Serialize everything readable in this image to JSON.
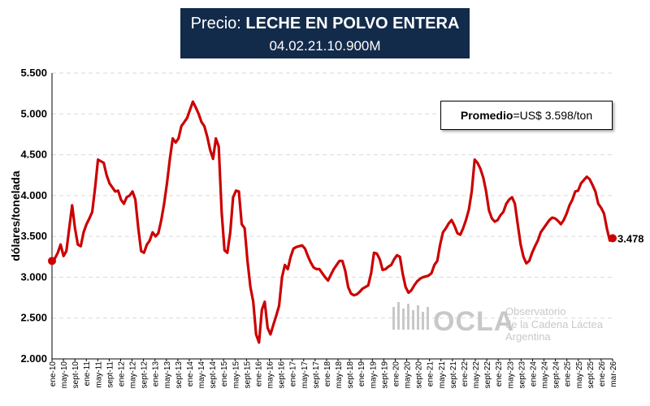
{
  "header": {
    "title_prefix": "Precio:",
    "title_product": "LECHE EN POLVO ENTERA",
    "code": "04.02.21.10.900M"
  },
  "average": {
    "label": "Promedio",
    "value": "=US$ 3.598/ton"
  },
  "watermark": {
    "logo_text": "OCLA",
    "line1": "Observatorio",
    "line2": "de la Cadena Láctea",
    "line3": "Argentina"
  },
  "colors": {
    "line": "#cc0000",
    "grid": "#d9d9d9",
    "title_bg": "#132b4a"
  },
  "chart_data": {
    "type": "line",
    "title": "Precio: LECHE EN POLVO ENTERA",
    "subtitle": "04.02.21.10.900M",
    "ylabel": "dólares/tonelada",
    "xlabel": "",
    "ylim": [
      2000,
      5500
    ],
    "yticks": [
      2000,
      2500,
      3000,
      3500,
      4000,
      4500,
      5000,
      5500
    ],
    "ytick_labels": [
      "2.000",
      "2.500",
      "3.000",
      "3.500",
      "4.000",
      "4.500",
      "5.000",
      "5.500"
    ],
    "grid": true,
    "x_tick_labels": [
      "ene-10",
      "may-10",
      "sept-10",
      "ene-11",
      "may-11",
      "sept-11",
      "ene-12",
      "may-12",
      "sept-12",
      "ene-13",
      "may-13",
      "sept-13",
      "ene-14",
      "may-14",
      "sept-14",
      "ene-15",
      "may-15",
      "sept-15",
      "ene-16",
      "may-16",
      "sept-16",
      "ene-17",
      "may-17",
      "sept-17",
      "ene-18",
      "may-18",
      "sept-18",
      "ene-19",
      "may-19",
      "sept-19",
      "ene-20",
      "may-20",
      "sept-20",
      "ene-21",
      "may-21",
      "sept-21",
      "ene-22",
      "may-22",
      "sept-22",
      "ene-23",
      "may-23",
      "sept-23",
      "ene-24",
      "may-24",
      "sept-24",
      "ene-25",
      "may-25",
      "sept-25",
      "ene-26",
      "mar-26"
    ],
    "last_value_label": "3.478",
    "series": [
      {
        "name": "Leche en polvo entera",
        "start": "ene-10",
        "frequency": "monthly",
        "values": [
          3200,
          3230,
          3300,
          3400,
          3260,
          3320,
          3600,
          3880,
          3600,
          3400,
          3380,
          3550,
          3650,
          3720,
          3800,
          4100,
          4440,
          4420,
          4400,
          4250,
          4150,
          4100,
          4050,
          4060,
          3950,
          3900,
          3980,
          4000,
          4050,
          3950,
          3600,
          3320,
          3300,
          3400,
          3450,
          3550,
          3500,
          3540,
          3700,
          3900,
          4150,
          4450,
          4700,
          4650,
          4700,
          4850,
          4900,
          4950,
          5050,
          5150,
          5080,
          5000,
          4900,
          4850,
          4720,
          4560,
          4450,
          4700,
          4600,
          3800,
          3330,
          3300,
          3550,
          3980,
          4060,
          4050,
          3650,
          3600,
          3200,
          2880,
          2700,
          2300,
          2200,
          2600,
          2700,
          2380,
          2300,
          2420,
          2530,
          2650,
          3000,
          3150,
          3100,
          3250,
          3350,
          3370,
          3380,
          3390,
          3350,
          3260,
          3180,
          3120,
          3100,
          3100,
          3050,
          3000,
          2960,
          3030,
          3100,
          3150,
          3200,
          3200,
          3080,
          2880,
          2800,
          2780,
          2790,
          2820,
          2860,
          2880,
          2900,
          3050,
          3300,
          3290,
          3220,
          3090,
          3100,
          3130,
          3150,
          3220,
          3270,
          3250,
          3040,
          2880,
          2810,
          2840,
          2900,
          2950,
          2980,
          3000,
          3010,
          3020,
          3050,
          3150,
          3200,
          3400,
          3550,
          3600,
          3660,
          3700,
          3630,
          3540,
          3520,
          3600,
          3700,
          3830,
          4050,
          4440,
          4400,
          4330,
          4220,
          4050,
          3820,
          3720,
          3680,
          3700,
          3760,
          3800,
          3900,
          3950,
          3980,
          3900,
          3650,
          3400,
          3250,
          3170,
          3200,
          3300,
          3380,
          3450,
          3550,
          3600,
          3650,
          3700,
          3730,
          3720,
          3690,
          3650,
          3700,
          3780,
          3880,
          3950,
          4050,
          4060,
          4150,
          4190,
          4230,
          4200,
          4130,
          4050,
          3900,
          3850,
          3780,
          3600,
          3450,
          3478
        ]
      }
    ]
  }
}
